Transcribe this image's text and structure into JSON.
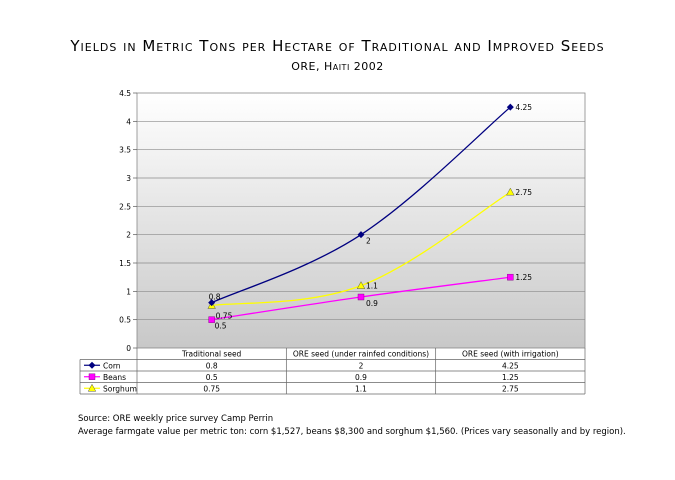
{
  "title": "Yields in Metric Tons per Hectare of Traditional and Improved Seeds",
  "subtitle": "ORE, Haiti 2002",
  "chart_data": {
    "type": "line",
    "categories": [
      "Traditional seed",
      "ORE seed (under rainfed conditions)",
      "ORE seed (with irrigation)"
    ],
    "series": [
      {
        "name": "Corn",
        "values": [
          0.8,
          2,
          4.25
        ],
        "color": "#000080",
        "marker": "diamond"
      },
      {
        "name": "Beans",
        "values": [
          0.5,
          0.9,
          1.25
        ],
        "color": "#ff00ff",
        "marker": "square"
      },
      {
        "name": "Sorghum",
        "values": [
          0.75,
          1.1,
          2.75
        ],
        "color": "#ffff00",
        "marker": "triangle"
      }
    ],
    "data_labels": [
      [
        "0.8",
        "2",
        "4.25"
      ],
      [
        "0.5",
        "0.9",
        "1.25"
      ],
      [
        "0.75",
        "1.1",
        "2.75"
      ]
    ],
    "y_ticks": [
      "0",
      "0.5",
      "1",
      "1.5",
      "2",
      "2.5",
      "3",
      "3.5",
      "4",
      "4.5"
    ],
    "ylim": [
      0,
      4.5
    ],
    "grid": true,
    "legend": "data-table",
    "data_table": true
  },
  "notes": {
    "source": "Source: ORE weekly price survey Camp Perrin",
    "value": "Average farmgate value per metric ton: corn $1,527, beans $8,300 and sorghum $1,560. (Prices vary seasonally and by region)."
  }
}
